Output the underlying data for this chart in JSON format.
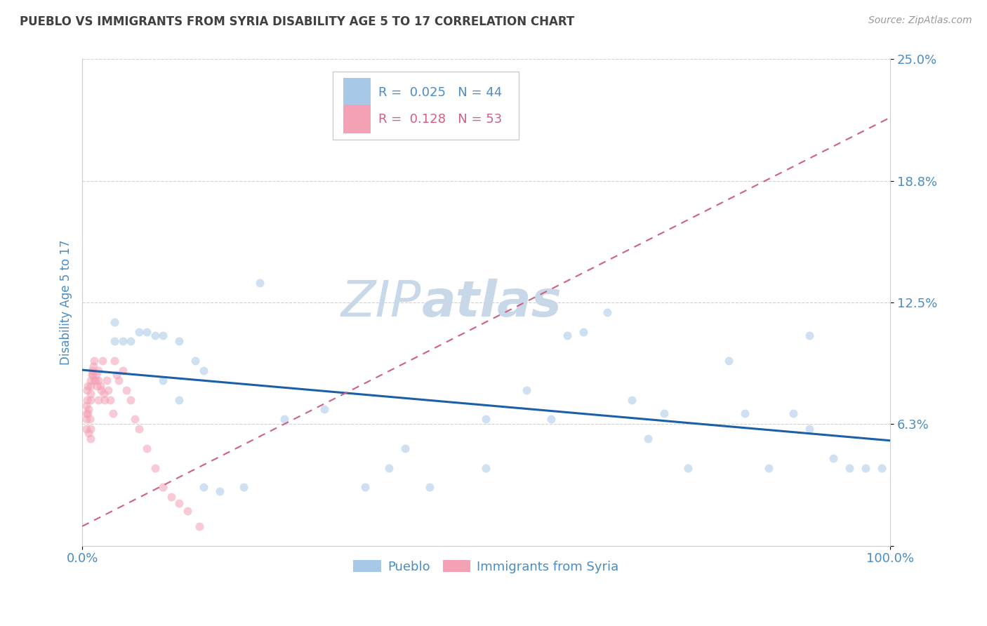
{
  "title": "PUEBLO VS IMMIGRANTS FROM SYRIA DISABILITY AGE 5 TO 17 CORRELATION CHART",
  "source_text": "Source: ZipAtlas.com",
  "ylabel_text": "Disability Age 5 to 17",
  "xlim": [
    0.0,
    1.0
  ],
  "ylim": [
    0.0,
    0.25
  ],
  "yticks": [
    0.0,
    0.0625,
    0.125,
    0.1875,
    0.25
  ],
  "ytick_labels": [
    "",
    "6.3%",
    "12.5%",
    "18.8%",
    "25.0%"
  ],
  "xtick_labels": [
    "0.0%",
    "100.0%"
  ],
  "pueblo_x": [
    0.04,
    0.04,
    0.05,
    0.06,
    0.07,
    0.08,
    0.09,
    0.1,
    0.1,
    0.12,
    0.12,
    0.14,
    0.15,
    0.15,
    0.17,
    0.2,
    0.22,
    0.25,
    0.3,
    0.35,
    0.38,
    0.4,
    0.43,
    0.5,
    0.5,
    0.55,
    0.58,
    0.6,
    0.62,
    0.65,
    0.68,
    0.7,
    0.72,
    0.75,
    0.8,
    0.82,
    0.85,
    0.88,
    0.9,
    0.9,
    0.93,
    0.95,
    0.97,
    0.99
  ],
  "pueblo_y": [
    0.115,
    0.105,
    0.105,
    0.105,
    0.11,
    0.11,
    0.108,
    0.108,
    0.085,
    0.105,
    0.075,
    0.095,
    0.09,
    0.03,
    0.028,
    0.03,
    0.135,
    0.065,
    0.07,
    0.03,
    0.04,
    0.05,
    0.03,
    0.04,
    0.065,
    0.08,
    0.065,
    0.108,
    0.11,
    0.12,
    0.075,
    0.055,
    0.068,
    0.04,
    0.095,
    0.068,
    0.04,
    0.068,
    0.108,
    0.06,
    0.045,
    0.04,
    0.04,
    0.04
  ],
  "syria_x": [
    0.005,
    0.005,
    0.005,
    0.005,
    0.006,
    0.006,
    0.007,
    0.007,
    0.008,
    0.008,
    0.009,
    0.01,
    0.01,
    0.01,
    0.01,
    0.01,
    0.01,
    0.012,
    0.012,
    0.013,
    0.014,
    0.015,
    0.015,
    0.016,
    0.017,
    0.018,
    0.02,
    0.02,
    0.02,
    0.022,
    0.023,
    0.025,
    0.027,
    0.028,
    0.03,
    0.032,
    0.035,
    0.038,
    0.04,
    0.042,
    0.045,
    0.05,
    0.055,
    0.06,
    0.065,
    0.07,
    0.08,
    0.09,
    0.1,
    0.11,
    0.12,
    0.13,
    0.145
  ],
  "syria_y": [
    0.065,
    0.072,
    0.06,
    0.068,
    0.075,
    0.08,
    0.082,
    0.068,
    0.058,
    0.07,
    0.065,
    0.075,
    0.078,
    0.082,
    0.085,
    0.06,
    0.055,
    0.088,
    0.09,
    0.088,
    0.092,
    0.085,
    0.095,
    0.085,
    0.088,
    0.082,
    0.09,
    0.085,
    0.075,
    0.082,
    0.08,
    0.095,
    0.078,
    0.075,
    0.085,
    0.08,
    0.075,
    0.068,
    0.095,
    0.088,
    0.085,
    0.09,
    0.08,
    0.075,
    0.065,
    0.06,
    0.05,
    0.04,
    0.03,
    0.025,
    0.022,
    0.018,
    0.01
  ],
  "pueblo_color": "#a8c8e8",
  "syria_color": "#f4a0b5",
  "pueblo_line_color": "#1a5fa8",
  "syria_line_color": "#d06080",
  "marker_size": 75,
  "marker_alpha": 0.55,
  "background_color": "#ffffff",
  "grid_color": "#d0d0d0",
  "title_color": "#404040",
  "axis_label_color": "#4a8cc4",
  "watermark_zip_color": "#c8d8e8",
  "watermark_atlas_color": "#c8d8e8",
  "watermark_fontsize": 52
}
